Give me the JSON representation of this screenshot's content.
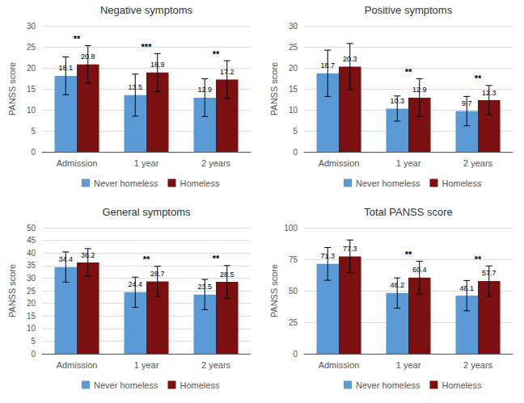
{
  "chart_data": [
    {
      "type": "bar",
      "title": "Negative symptoms",
      "ylabel": "PANSS score",
      "categories": [
        "Admission",
        "1 year",
        "2 years"
      ],
      "series": [
        {
          "name": "Never homeless",
          "color": "#5B9BD5",
          "values": [
            18.1,
            13.5,
            12.9
          ],
          "errors": [
            4.5,
            5.0,
            4.5
          ]
        },
        {
          "name": "Homeless",
          "color": "#7B1010",
          "values": [
            20.8,
            18.9,
            17.2
          ],
          "errors": [
            4.5,
            4.5,
            4.5
          ]
        }
      ],
      "ylim": [
        0,
        30
      ],
      "yticks": [
        0,
        5,
        10,
        15,
        20,
        25,
        30
      ],
      "grid": true,
      "data_labels": true,
      "legend": "bottom",
      "annotations": [
        {
          "category": "Admission",
          "text": "**"
        },
        {
          "category": "1 year",
          "text": "***"
        },
        {
          "category": "2 years",
          "text": "**"
        }
      ]
    },
    {
      "type": "bar",
      "title": "Positive symptoms",
      "ylabel": "PANSS score",
      "categories": [
        "Admission",
        "1 year",
        "2 years"
      ],
      "series": [
        {
          "name": "Never homeless",
          "color": "#5B9BD5",
          "values": [
            18.7,
            10.3,
            9.7
          ],
          "errors": [
            5.5,
            3.0,
            3.5
          ]
        },
        {
          "name": "Homeless",
          "color": "#7B1010",
          "values": [
            20.3,
            12.9,
            12.3
          ],
          "errors": [
            5.5,
            4.5,
            3.5
          ]
        }
      ],
      "ylim": [
        0,
        30
      ],
      "yticks": [
        0,
        5,
        10,
        15,
        20,
        25,
        30
      ],
      "grid": true,
      "data_labels": true,
      "legend": "bottom",
      "annotations": [
        {
          "category": "1 year",
          "text": "**"
        },
        {
          "category": "2 years",
          "text": "**"
        }
      ]
    },
    {
      "type": "bar",
      "title": "General symptoms",
      "ylabel": "PANSS score",
      "categories": [
        "Admission",
        "1 year",
        "2 years"
      ],
      "series": [
        {
          "name": "Never homeless",
          "color": "#5B9BD5",
          "values": [
            34.4,
            24.4,
            23.5
          ],
          "errors": [
            6.0,
            6.0,
            6.0
          ]
        },
        {
          "name": "Homeless",
          "color": "#7B1010",
          "values": [
            36.2,
            28.7,
            28.5
          ],
          "errors": [
            5.5,
            6.0,
            6.5
          ]
        }
      ],
      "ylim": [
        0,
        50
      ],
      "yticks": [
        0,
        5,
        10,
        15,
        20,
        25,
        30,
        35,
        40,
        45,
        50
      ],
      "grid": true,
      "data_labels": true,
      "legend": "bottom",
      "annotations": [
        {
          "category": "1 year",
          "text": "**"
        },
        {
          "category": "2 years",
          "text": "**"
        }
      ]
    },
    {
      "type": "bar",
      "title": "Total PANSS score",
      "ylabel": "PANSS score",
      "categories": [
        "Admission",
        "1 year",
        "2 years"
      ],
      "series": [
        {
          "name": "Never homeless",
          "color": "#5B9BD5",
          "values": [
            71.3,
            48.2,
            46.1
          ],
          "errors": [
            13.0,
            12.0,
            12.0
          ]
        },
        {
          "name": "Homeless",
          "color": "#7B1010",
          "values": [
            77.3,
            60.4,
            57.7
          ],
          "errors": [
            13.0,
            13.0,
            12.0
          ]
        }
      ],
      "ylim": [
        0,
        100
      ],
      "yticks": [
        0,
        25,
        50,
        75,
        100
      ],
      "grid": true,
      "data_labels": true,
      "legend": "bottom",
      "annotations": [
        {
          "category": "1 year",
          "text": "**"
        },
        {
          "category": "2 years",
          "text": "**"
        }
      ]
    }
  ]
}
